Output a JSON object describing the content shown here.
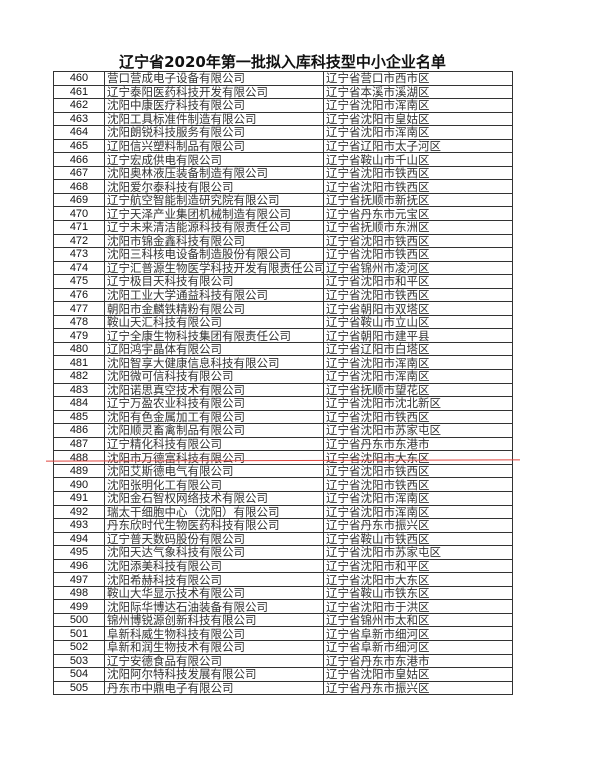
{
  "title": "辽宁省2020年第一批拟入库科技型中小企业名单",
  "colors": {
    "annotation_line": "#e0453f",
    "border": "#333333"
  },
  "rows": [
    {
      "no": "460",
      "company": "营口营成电子设备有限公司",
      "location": "辽宁省营口市西市区"
    },
    {
      "no": "461",
      "company": "辽宁泰阳医药科技开发有限公司",
      "location": "辽宁省本溪市溪湖区"
    },
    {
      "no": "462",
      "company": "沈阳中康医疗科技有限公司",
      "location": "辽宁省沈阳市浑南区"
    },
    {
      "no": "463",
      "company": "沈阳工具标准件制造有限公司",
      "location": "辽宁省沈阳市皇姑区"
    },
    {
      "no": "464",
      "company": "沈阳朗锐科技服务有限公司",
      "location": "辽宁省沈阳市浑南区"
    },
    {
      "no": "465",
      "company": "辽阳信兴塑料制品有限公司",
      "location": "辽宁省辽阳市太子河区"
    },
    {
      "no": "466",
      "company": "辽宁宏成供电有限公司",
      "location": "辽宁省鞍山市千山区"
    },
    {
      "no": "467",
      "company": "沈阳奥林液压装备制造有限公司",
      "location": "辽宁省沈阳市铁西区"
    },
    {
      "no": "468",
      "company": "沈阳爱尔泰科技有限公司",
      "location": "辽宁省沈阳市铁西区"
    },
    {
      "no": "469",
      "company": "辽宁航空智能制造研究院有限公司",
      "location": "辽宁省抚顺市新抚区"
    },
    {
      "no": "470",
      "company": "辽宁天泽产业集团机械制造有限公司",
      "location": "辽宁省丹东市元宝区"
    },
    {
      "no": "471",
      "company": "辽宁未来清洁能源科技有限责任公司",
      "location": "辽宁省抚顺市东洲区"
    },
    {
      "no": "472",
      "company": "沈阳市锦金鑫科技有限公司",
      "location": "辽宁省沈阳市铁西区"
    },
    {
      "no": "473",
      "company": "沈阳三科核电设备制造股份有限公司",
      "location": "辽宁省沈阳市铁西区"
    },
    {
      "no": "474",
      "company": "辽宁汇普源生物医学科技开发有限责任公司",
      "location": "辽宁省锦州市凌河区"
    },
    {
      "no": "475",
      "company": "辽宁极目天科技有限公司",
      "location": "辽宁省沈阳市和平区"
    },
    {
      "no": "476",
      "company": "沈阳工业大学通益科技有限公司",
      "location": "辽宁省沈阳市铁西区"
    },
    {
      "no": "477",
      "company": "朝阳市金麟铁精粉有限公司",
      "location": "辽宁省朝阳市双塔区"
    },
    {
      "no": "478",
      "company": "鞍山天汇科技有限公司",
      "location": "辽宁省鞍山市立山区"
    },
    {
      "no": "479",
      "company": "辽宁全康生物科技集团有限责任公司",
      "location": "辽宁省朝阳市建平县"
    },
    {
      "no": "480",
      "company": "辽阳鸿宇晶体有限公司",
      "location": "辽宁省辽阳市白塔区"
    },
    {
      "no": "481",
      "company": "沈阳智享大健康信息科技有限公司",
      "location": "辽宁省沈阳市浑南区"
    },
    {
      "no": "482",
      "company": "沈阳微可信科技有限公司",
      "location": "辽宁省沈阳市浑南区"
    },
    {
      "no": "483",
      "company": "沈阳诺思真空技术有限公司",
      "location": "辽宁省抚顺市望花区"
    },
    {
      "no": "484",
      "company": "辽宁万盈农业科技有限公司",
      "location": "辽宁省沈阳市沈北新区"
    },
    {
      "no": "485",
      "company": "沈阳有色金属加工有限公司",
      "location": "辽宁省沈阳市铁西区"
    },
    {
      "no": "486",
      "company": "沈阳顺灵畜禽制品有限公司",
      "location": "辽宁省沈阳市苏家屯区"
    },
    {
      "no": "487",
      "company": "辽宁精化科技有限公司",
      "location": "辽宁省丹东市东港市"
    },
    {
      "no": "488",
      "company": "沈阳市万德富科技有限公司",
      "location": "辽宁省沈阳市大东区"
    },
    {
      "no": "489",
      "company": "沈阳艾斯德电气有限公司",
      "location": "辽宁省沈阳市铁西区"
    },
    {
      "no": "490",
      "company": "沈阳张明化工有限公司",
      "location": "辽宁省沈阳市铁西区"
    },
    {
      "no": "491",
      "company": "沈阳金石智权网络技术有限公司",
      "location": "辽宁省沈阳市浑南区"
    },
    {
      "no": "492",
      "company": "瑞太干细胞中心（沈阳）有限公司",
      "location": "辽宁省沈阳市浑南区"
    },
    {
      "no": "493",
      "company": "丹东欣时代生物医药科技有限公司",
      "location": "辽宁省丹东市振兴区"
    },
    {
      "no": "494",
      "company": "辽宁普天数码股份有限公司",
      "location": "辽宁省鞍山市铁西区"
    },
    {
      "no": "495",
      "company": "沈阳天达气象科技有限公司",
      "location": "辽宁省沈阳市苏家屯区"
    },
    {
      "no": "496",
      "company": "沈阳添美科技有限公司",
      "location": "辽宁省沈阳市和平区"
    },
    {
      "no": "497",
      "company": "沈阳希赫科技有限公司",
      "location": "辽宁省沈阳市大东区"
    },
    {
      "no": "498",
      "company": "鞍山大华显示技术有限公司",
      "location": "辽宁省鞍山市铁东区"
    },
    {
      "no": "499",
      "company": "沈阳际华博达石油装备有限公司",
      "location": "辽宁省沈阳市于洪区"
    },
    {
      "no": "500",
      "company": "锦州博锐源创新科技有限公司",
      "location": "辽宁省锦州市太和区"
    },
    {
      "no": "501",
      "company": "阜新科威生物科技有限公司",
      "location": "辽宁省阜新市细河区"
    },
    {
      "no": "502",
      "company": "阜新和润生物技术有限公司",
      "location": "辽宁省阜新市细河区"
    },
    {
      "no": "503",
      "company": "辽宁安德食品有限公司",
      "location": "辽宁省丹东市东港市"
    },
    {
      "no": "504",
      "company": "沈阳阿尔特科技发展有限公司",
      "location": "辽宁省沈阳市皇姑区"
    },
    {
      "no": "505",
      "company": "丹东市中鼎电子有限公司",
      "location": "辽宁省丹东市振兴区"
    }
  ]
}
